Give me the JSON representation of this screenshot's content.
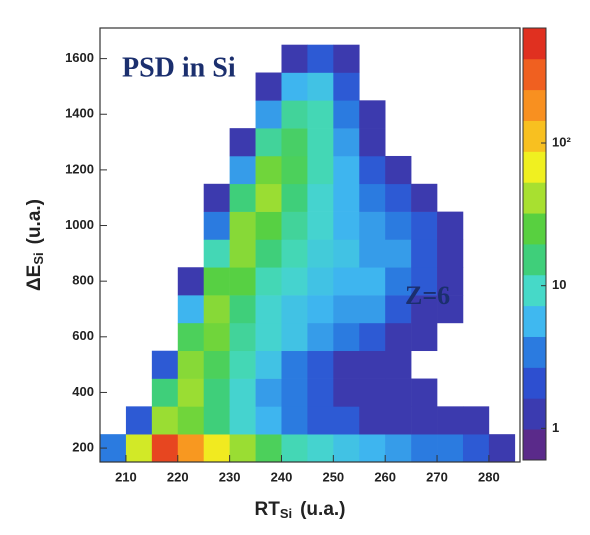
{
  "chart_data": {
    "type": "heatmap",
    "annotations": [
      "PSD in Si",
      "Z=6"
    ],
    "x_label": {
      "main": "RT",
      "sub": "Si",
      "unit": "(u.a.)"
    },
    "y_label": {
      "main": "ΔE",
      "sub": "Si",
      "unit": "(u.a.)"
    },
    "xlim": [
      205,
      286
    ],
    "ylim": [
      150,
      1710
    ],
    "xticks": [
      210,
      220,
      230,
      240,
      250,
      260,
      270,
      280
    ],
    "yticks": [
      200,
      400,
      600,
      800,
      1000,
      1200,
      1400,
      1600
    ],
    "xbins": [
      205,
      210,
      215,
      220,
      225,
      230,
      235,
      240,
      245,
      250,
      255,
      260,
      265,
      270,
      275,
      280,
      285
    ],
    "ybins": [
      150,
      250,
      350,
      450,
      550,
      650,
      750,
      850,
      950,
      1050,
      1150,
      1250,
      1350,
      1450,
      1550,
      1650,
      1750
    ],
    "z": [
      [
        3,
        60,
        500,
        200,
        80,
        40,
        20,
        10,
        8,
        6,
        5,
        4,
        3,
        3,
        2,
        1
      ],
      [
        0,
        2,
        40,
        30,
        15,
        8,
        5,
        3,
        2,
        2,
        1,
        1,
        1,
        1,
        1,
        0
      ],
      [
        0,
        0,
        15,
        40,
        15,
        8,
        4,
        3,
        2,
        1,
        1,
        1,
        1,
        0,
        0,
        0
      ],
      [
        0,
        0,
        2,
        35,
        20,
        10,
        6,
        3,
        2,
        1,
        1,
        1,
        0,
        0,
        0,
        0
      ],
      [
        0,
        0,
        0,
        20,
        30,
        12,
        8,
        6,
        4,
        3,
        2,
        1,
        1,
        0,
        0,
        0
      ],
      [
        0,
        0,
        0,
        5,
        35,
        15,
        8,
        6,
        5,
        4,
        4,
        2,
        1,
        1,
        0,
        0
      ],
      [
        0,
        0,
        0,
        1,
        25,
        25,
        10,
        8,
        6,
        5,
        5,
        3,
        2,
        1,
        0,
        0
      ],
      [
        0,
        0,
        0,
        0,
        10,
        35,
        15,
        10,
        7,
        6,
        4,
        4,
        2,
        1,
        0,
        0
      ],
      [
        0,
        0,
        0,
        0,
        3,
        35,
        25,
        12,
        8,
        5,
        4,
        3,
        2,
        1,
        0,
        0
      ],
      [
        0,
        0,
        0,
        0,
        1,
        15,
        40,
        15,
        8,
        5,
        3,
        2,
        1,
        0,
        0,
        0
      ],
      [
        0,
        0,
        0,
        0,
        0,
        4,
        30,
        20,
        10,
        5,
        2,
        1,
        0,
        0,
        0,
        0
      ],
      [
        0,
        0,
        0,
        0,
        0,
        1,
        12,
        18,
        10,
        4,
        1,
        0,
        0,
        0,
        0,
        0
      ],
      [
        0,
        0,
        0,
        0,
        0,
        0,
        4,
        12,
        10,
        3,
        1,
        0,
        0,
        0,
        0,
        0
      ],
      [
        0,
        0,
        0,
        0,
        0,
        0,
        1,
        5,
        6,
        2,
        0,
        0,
        0,
        0,
        0,
        0
      ],
      [
        0,
        0,
        0,
        0,
        0,
        0,
        0,
        1,
        2,
        1,
        0,
        0,
        0,
        0,
        0,
        0
      ],
      [
        0,
        0,
        0,
        0,
        0,
        0,
        0,
        0,
        0,
        0,
        0,
        0,
        0,
        0,
        0,
        0
      ]
    ],
    "zlim": [
      0.6,
      640
    ],
    "zscale": "log",
    "zticks": [
      1,
      10,
      {
        "value": 100,
        "label": "10²"
      }
    ],
    "colormap": [
      "#5a2a8a",
      "#3b3bb0",
      "#2d4fd0",
      "#2b7be0",
      "#3fb8f0",
      "#46d9c8",
      "#3fcf7a",
      "#58d040",
      "#a8e030",
      "#f0f020",
      "#f8c020",
      "#f89020",
      "#f06020",
      "#e03020"
    ]
  }
}
